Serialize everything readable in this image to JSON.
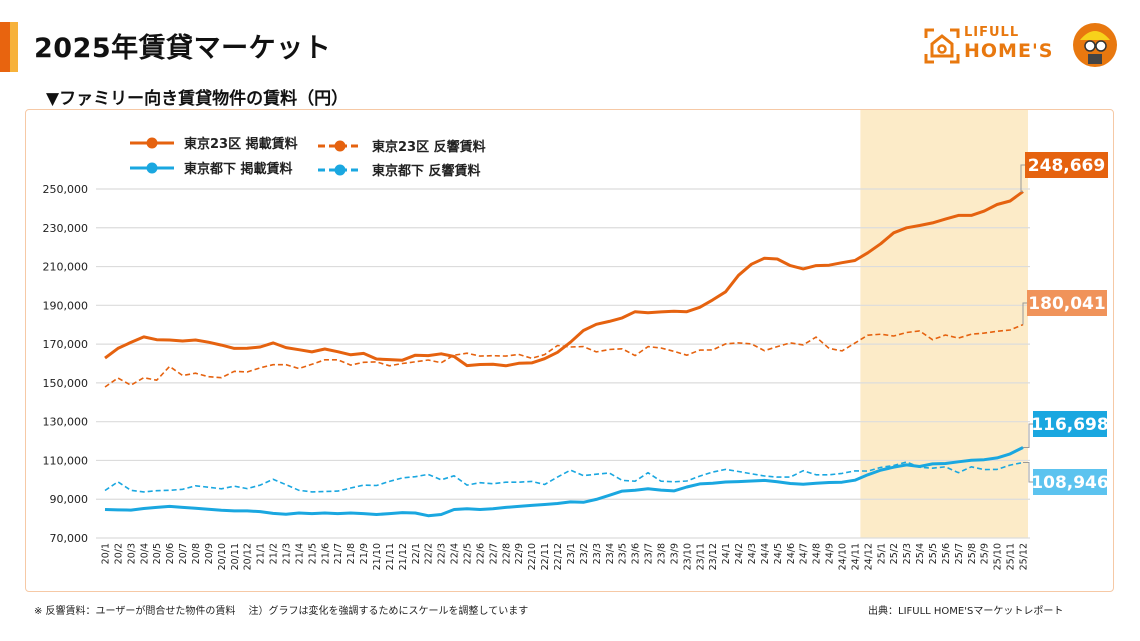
{
  "header": {
    "title": "2025年賃貸マーケット",
    "subtitle": "▼ファミリー向き賃貸物件の賃料（円）",
    "logo_small": "LIFULL",
    "logo_big": "HOME'S"
  },
  "footer": {
    "note": "※ 反響賃料：ユーザーが問合せた物件の賃料　 注）グラフは変化を強調するためにスケールを調整しています",
    "source": "出典：LIFULL HOME'Sマーケットレポート"
  },
  "colors": {
    "tokyo23_listed": "#e5620f",
    "tokyo23_response": "#e5620f",
    "tama_listed": "#1aa7e0",
    "tama_response": "#1aa7e0",
    "highlight": "#fcebc8",
    "label_23_response": "#f0935a",
    "label_tama_response": "#5cc3ef"
  },
  "chart_data": {
    "type": "line",
    "title": "",
    "xlabel": "",
    "ylabel": "",
    "ylim": [
      70000,
      250000
    ],
    "yticks": [
      70000,
      90000,
      110000,
      130000,
      150000,
      170000,
      190000,
      210000,
      230000,
      250000
    ],
    "ytick_labels": [
      "70,000",
      "90,000",
      "110,000",
      "130,000",
      "150,000",
      "170,000",
      "190,000",
      "210,000",
      "230,000",
      "250,000"
    ],
    "grid": true,
    "legend_position": "top-left",
    "highlight_range": [
      "24/12",
      "25/12"
    ],
    "categories": [
      "20/1",
      "20/2",
      "20/3",
      "20/4",
      "20/5",
      "20/6",
      "20/7",
      "20/8",
      "20/9",
      "20/10",
      "20/11",
      "20/12",
      "21/1",
      "21/2",
      "21/3",
      "21/4",
      "21/5",
      "21/6",
      "21/7",
      "21/8",
      "21/9",
      "21/10",
      "21/11",
      "21/12",
      "22/1",
      "22/2",
      "22/3",
      "22/4",
      "22/5",
      "22/6",
      "22/7",
      "22/8",
      "22/9",
      "22/10",
      "22/11",
      "22/12",
      "23/1",
      "23/2",
      "23/3",
      "23/4",
      "23/5",
      "23/6",
      "23/7",
      "23/8",
      "23/9",
      "23/10",
      "23/11",
      "23/12",
      "24/1",
      "24/2",
      "24/3",
      "24/4",
      "24/5",
      "24/6",
      "24/7",
      "24/8",
      "24/9",
      "24/10",
      "24/11",
      "24/12",
      "25/1",
      "25/2",
      "25/3",
      "25/4",
      "25/5",
      "25/6",
      "25/7",
      "25/8",
      "25/9",
      "25/10",
      "25/11",
      "25/12"
    ],
    "series": [
      {
        "name": "東京23区 掲載賃料",
        "style": "solid",
        "end_label": "248,669",
        "values": [
          162800,
          167800,
          170900,
          173700,
          172300,
          172100,
          171600,
          172100,
          171000,
          169500,
          167800,
          167900,
          168500,
          170600,
          168200,
          167100,
          166000,
          167500,
          166100,
          164500,
          165200,
          162300,
          162000,
          161700,
          164300,
          164100,
          165000,
          163600,
          158900,
          159500,
          159600,
          158800,
          160100,
          160300,
          162500,
          165800,
          171000,
          177000,
          180200,
          181700,
          183500,
          186700,
          186200,
          186600,
          186900,
          186700,
          189000,
          192800,
          197000,
          205500,
          211200,
          214300,
          213900,
          210500,
          208800,
          210500,
          210700,
          212000,
          213100,
          217100,
          221800,
          227400,
          230000,
          231200,
          232500,
          234500,
          236400,
          236400,
          238600,
          242000,
          243800,
          248669
        ]
      },
      {
        "name": "東京23区 反響賃料",
        "style": "dashed",
        "end_label": "180,041",
        "values": [
          147900,
          152500,
          148800,
          152700,
          151400,
          158500,
          153800,
          155000,
          153200,
          152700,
          156000,
          155600,
          157800,
          159400,
          159400,
          157400,
          159600,
          161900,
          161900,
          159200,
          160600,
          160800,
          158800,
          160000,
          160900,
          161800,
          160400,
          164300,
          165300,
          163800,
          164000,
          163800,
          164700,
          162700,
          164600,
          169300,
          168500,
          168700,
          166000,
          167200,
          167600,
          164100,
          168700,
          168000,
          166300,
          164300,
          166900,
          167000,
          170100,
          170600,
          170100,
          166600,
          168700,
          170600,
          169600,
          173600,
          167800,
          166500,
          170500,
          174600,
          175100,
          174200,
          176000,
          176800,
          172300,
          174700,
          173100,
          175100,
          175700,
          176600,
          177300,
          180041
        ]
      },
      {
        "name": "東京都下 掲載賃料",
        "style": "solid",
        "end_label": "116,698",
        "values": [
          84700,
          84500,
          84400,
          85200,
          85800,
          86300,
          85800,
          85300,
          84800,
          84300,
          84000,
          84000,
          83600,
          82700,
          82300,
          82900,
          82600,
          82900,
          82600,
          82900,
          82600,
          82100,
          82600,
          83100,
          82900,
          81500,
          82100,
          84700,
          85100,
          84700,
          85100,
          85800,
          86300,
          86800,
          87300,
          87800,
          88600,
          88400,
          89900,
          92000,
          94200,
          94600,
          95400,
          94700,
          94300,
          96300,
          97900,
          98200,
          98900,
          99100,
          99400,
          99700,
          99000,
          98100,
          97700,
          98200,
          98600,
          98800,
          99800,
          102600,
          105000,
          106500,
          107700,
          106900,
          108200,
          108400,
          109300,
          110100,
          110400,
          111300,
          113400,
          116698
        ]
      },
      {
        "name": "東京都下 反響賃料",
        "style": "dashed",
        "end_label": "108,946",
        "values": [
          94500,
          99000,
          94600,
          93800,
          94400,
          94600,
          95100,
          96900,
          96200,
          95400,
          96700,
          95500,
          97300,
          100300,
          97500,
          94600,
          93800,
          94000,
          94200,
          95800,
          97300,
          97100,
          99200,
          101000,
          101600,
          102800,
          100000,
          102100,
          97300,
          98500,
          98000,
          98800,
          98800,
          99200,
          97600,
          101400,
          105000,
          102200,
          102900,
          103500,
          99700,
          99300,
          103700,
          99300,
          99000,
          99400,
          101900,
          104000,
          105400,
          104300,
          103100,
          102000,
          101400,
          101400,
          104700,
          102600,
          102600,
          103300,
          104600,
          104500,
          106400,
          107400,
          109200,
          106500,
          106000,
          106700,
          103700,
          106700,
          105300,
          105400,
          107600,
          108946
        ]
      }
    ]
  }
}
